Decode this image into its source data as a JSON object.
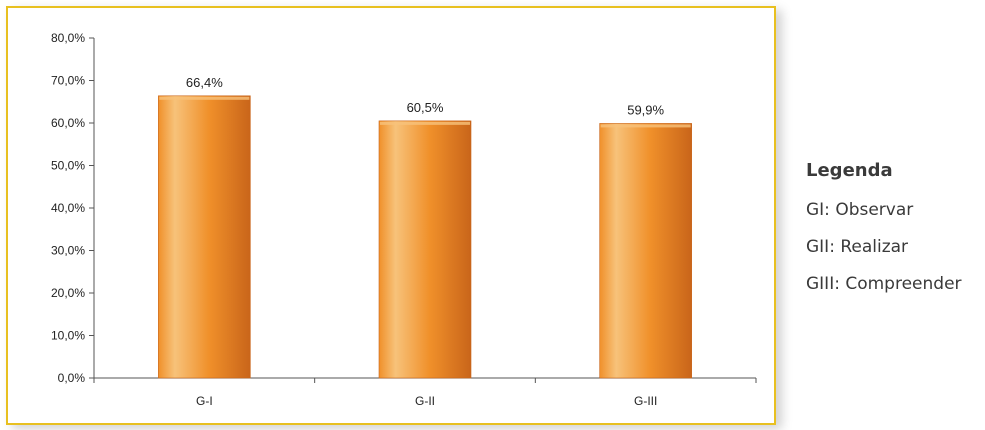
{
  "chart_data": {
    "type": "bar",
    "categories": [
      "G-I",
      "G-II",
      "G-III"
    ],
    "values": [
      66.4,
      60.5,
      59.9
    ],
    "data_labels": [
      "66,4%",
      "60,5%",
      "59,9%"
    ],
    "y_ticks": [
      "0,0%",
      "10,0%",
      "20,0%",
      "30,0%",
      "40,0%",
      "50,0%",
      "60,0%",
      "70,0%",
      "80,0%"
    ],
    "ylim": [
      0,
      80
    ],
    "y_step": 10,
    "grid": false,
    "legend_position": "right"
  },
  "legend": {
    "title": "Legenda",
    "items": [
      "GI: Observar",
      "GII: Realizar",
      "GIII: Compreender"
    ]
  },
  "colors": {
    "bar_light": "#f7c27a",
    "bar_mid": "#f0902a",
    "bar_dark": "#c9651a",
    "frame": "#e8c020",
    "axis": "#555555"
  }
}
